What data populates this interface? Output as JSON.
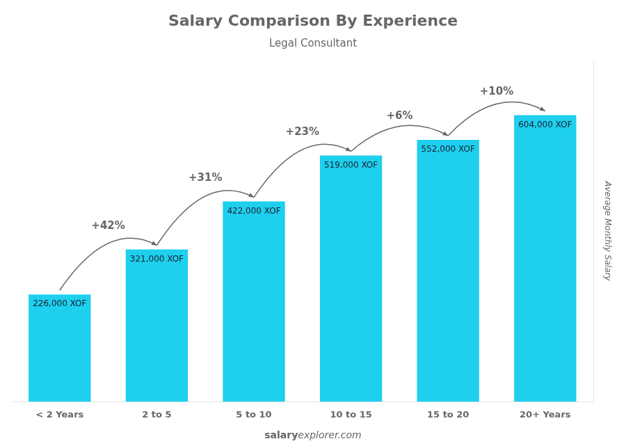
{
  "chart_data": {
    "type": "bar",
    "title": "Salary Comparison By Experience",
    "subtitle": "Legal Consultant",
    "y_label": "Average Monthly Salary",
    "footer": [
      "salary",
      "explorer.com"
    ],
    "categories": [
      "< 2 Years",
      "2 to 5",
      "5 to 10",
      "10 to 15",
      "15 to 20",
      "20+ Years"
    ],
    "values": [
      226000,
      321000,
      422000,
      519000,
      552000,
      604000
    ],
    "value_labels": [
      "226,000 XOF",
      "321,000 XOF",
      "422,000 XOF",
      "519,000 XOF",
      "552,000 XOF",
      "604,000 XOF"
    ],
    "data_labels": true,
    "annotations": [
      "+42%",
      "+31%",
      "+23%",
      "+6%",
      "+10%"
    ],
    "color": "#1ecfee",
    "ylim": [
      0,
      720000
    ],
    "grid": false,
    "tick_labels": "x"
  }
}
